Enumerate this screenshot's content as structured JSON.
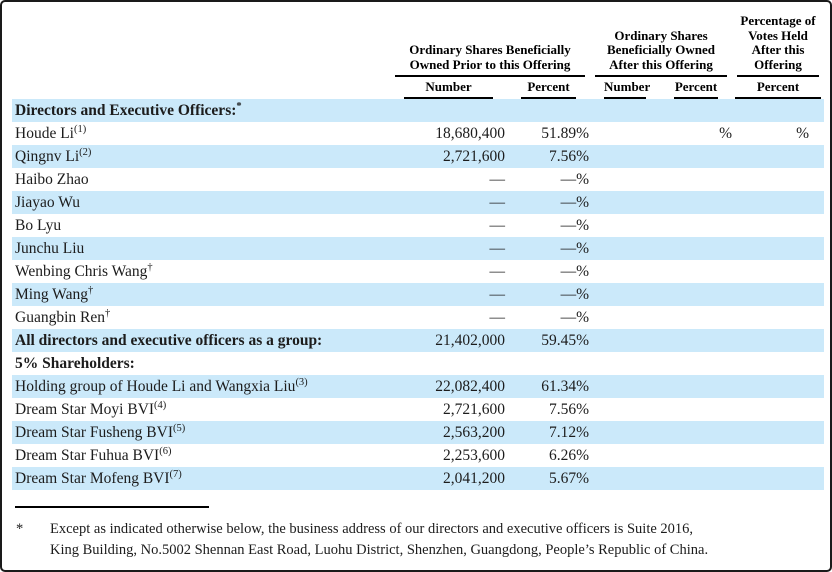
{
  "colors": {
    "row_highlight": "#cbe9fa"
  },
  "table": {
    "column_groups": [
      {
        "label": "Ordinary Shares Beneficially Owned Prior to this Offering",
        "columns": [
          "Number",
          "Percent"
        ]
      },
      {
        "label": "Ordinary Shares Beneficially Owned After this Offering",
        "columns": [
          "Number",
          "Percent"
        ]
      },
      {
        "label": "Percentage of Votes Held After this Offering",
        "columns": [
          "Percent"
        ]
      }
    ],
    "rows": [
      {
        "name": "Directors and Executive Officers:",
        "sup": "*",
        "bold": true,
        "highlight": true,
        "prior_number": "",
        "prior_percent": "",
        "after_number": "",
        "after_percent": "",
        "votes_percent": ""
      },
      {
        "name": "Houde Li",
        "sup": "(1)",
        "bold": false,
        "highlight": false,
        "prior_number": "18,680,400",
        "prior_percent": "51.89%",
        "after_number": "",
        "after_percent": "%",
        "votes_percent": "%"
      },
      {
        "name": "Qingnv Li",
        "sup": "(2)",
        "bold": false,
        "highlight": true,
        "prior_number": "2,721,600",
        "prior_percent": "7.56%",
        "after_number": "",
        "after_percent": "",
        "votes_percent": ""
      },
      {
        "name": "Haibo Zhao",
        "sup": "",
        "bold": false,
        "highlight": false,
        "prior_number": "—",
        "prior_percent": "—%",
        "after_number": "",
        "after_percent": "",
        "votes_percent": ""
      },
      {
        "name": "Jiayao Wu",
        "sup": "",
        "bold": false,
        "highlight": true,
        "prior_number": "—",
        "prior_percent": "—%",
        "after_number": "",
        "after_percent": "",
        "votes_percent": ""
      },
      {
        "name": "Bo Lyu",
        "sup": "",
        "bold": false,
        "highlight": false,
        "prior_number": "—",
        "prior_percent": "—%",
        "after_number": "",
        "after_percent": "",
        "votes_percent": ""
      },
      {
        "name": "Junchu Liu",
        "sup": "",
        "bold": false,
        "highlight": true,
        "prior_number": "—",
        "prior_percent": "—%",
        "after_number": "",
        "after_percent": "",
        "votes_percent": ""
      },
      {
        "name": "Wenbing Chris Wang",
        "sup": "†",
        "bold": false,
        "highlight": false,
        "prior_number": "—",
        "prior_percent": "—%",
        "after_number": "",
        "after_percent": "",
        "votes_percent": ""
      },
      {
        "name": "Ming Wang",
        "sup": "†",
        "bold": false,
        "highlight": true,
        "prior_number": "—",
        "prior_percent": "—%",
        "after_number": "",
        "after_percent": "",
        "votes_percent": ""
      },
      {
        "name": "Guangbin Ren",
        "sup": "†",
        "bold": false,
        "highlight": false,
        "prior_number": "—",
        "prior_percent": "—%",
        "after_number": "",
        "after_percent": "",
        "votes_percent": ""
      },
      {
        "name": "All directors and executive officers as a group:",
        "sup": "",
        "bold": true,
        "highlight": true,
        "prior_number": "21,402,000",
        "prior_percent": "59.45%",
        "after_number": "",
        "after_percent": "",
        "votes_percent": ""
      },
      {
        "name": "5% Shareholders:",
        "sup": "",
        "bold": true,
        "highlight": false,
        "prior_number": "",
        "prior_percent": "",
        "after_number": "",
        "after_percent": "",
        "votes_percent": ""
      },
      {
        "name": "Holding group of Houde Li and Wangxia Liu",
        "sup": "(3)",
        "bold": false,
        "highlight": true,
        "prior_number": "22,082,400",
        "prior_percent": "61.34%",
        "after_number": "",
        "after_percent": "",
        "votes_percent": ""
      },
      {
        "name": "Dream Star Moyi BVI",
        "sup": "(4)",
        "bold": false,
        "highlight": false,
        "prior_number": "2,721,600",
        "prior_percent": "7.56%",
        "after_number": "",
        "after_percent": "",
        "votes_percent": ""
      },
      {
        "name": "Dream Star Fusheng BVI",
        "sup": "(5)",
        "bold": false,
        "highlight": true,
        "prior_number": "2,563,200",
        "prior_percent": "7.12%",
        "after_number": "",
        "after_percent": "",
        "votes_percent": ""
      },
      {
        "name": "Dream Star Fuhua BVI",
        "sup": "(6)",
        "bold": false,
        "highlight": false,
        "prior_number": "2,253,600",
        "prior_percent": "6.26%",
        "after_number": "",
        "after_percent": "",
        "votes_percent": ""
      },
      {
        "name": "Dream Star Mofeng BVI",
        "sup": "(7)",
        "bold": false,
        "highlight": true,
        "prior_number": "2,041,200",
        "prior_percent": "5.67%",
        "after_number": "",
        "after_percent": "",
        "votes_percent": ""
      }
    ]
  },
  "footnote": {
    "marker": "*",
    "lines": [
      "Except as indicated otherwise below, the business address of our directors and executive officers is Suite 2016,",
      "King Building, No.5002 Shennan East Road, Luohu District, Shenzhen, Guangdong, People’s Republic of China."
    ]
  }
}
